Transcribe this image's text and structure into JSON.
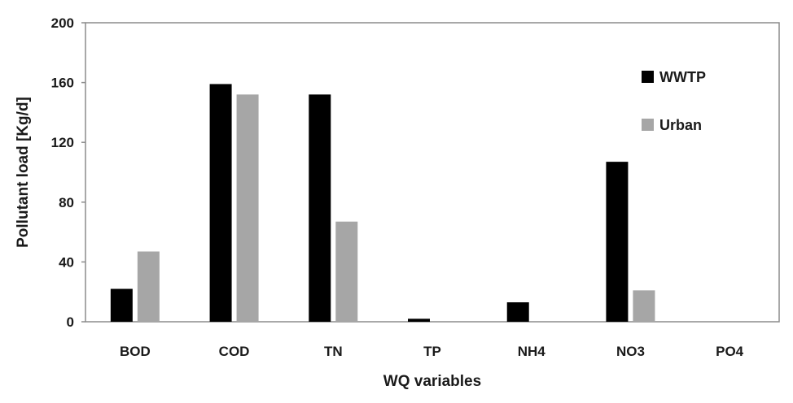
{
  "chart_data": {
    "type": "bar",
    "title": "",
    "xlabel": "WQ variables",
    "ylabel": "Pollutant load [Kg/d]",
    "categories": [
      "BOD",
      "COD",
      "TN",
      "TP",
      "NH4",
      "NO3",
      "PO4"
    ],
    "series": [
      {
        "name": "WWTP",
        "color": "#000000",
        "values": [
          22,
          159,
          152,
          2,
          13,
          107,
          0
        ]
      },
      {
        "name": "Urban",
        "color": "#a6a6a6",
        "values": [
          47,
          152,
          67,
          0,
          0,
          21,
          0
        ]
      }
    ],
    "ylim": [
      0,
      200
    ],
    "yticks": [
      0,
      40,
      80,
      120,
      160,
      200
    ],
    "grid": false,
    "legend_position": "top-right"
  }
}
